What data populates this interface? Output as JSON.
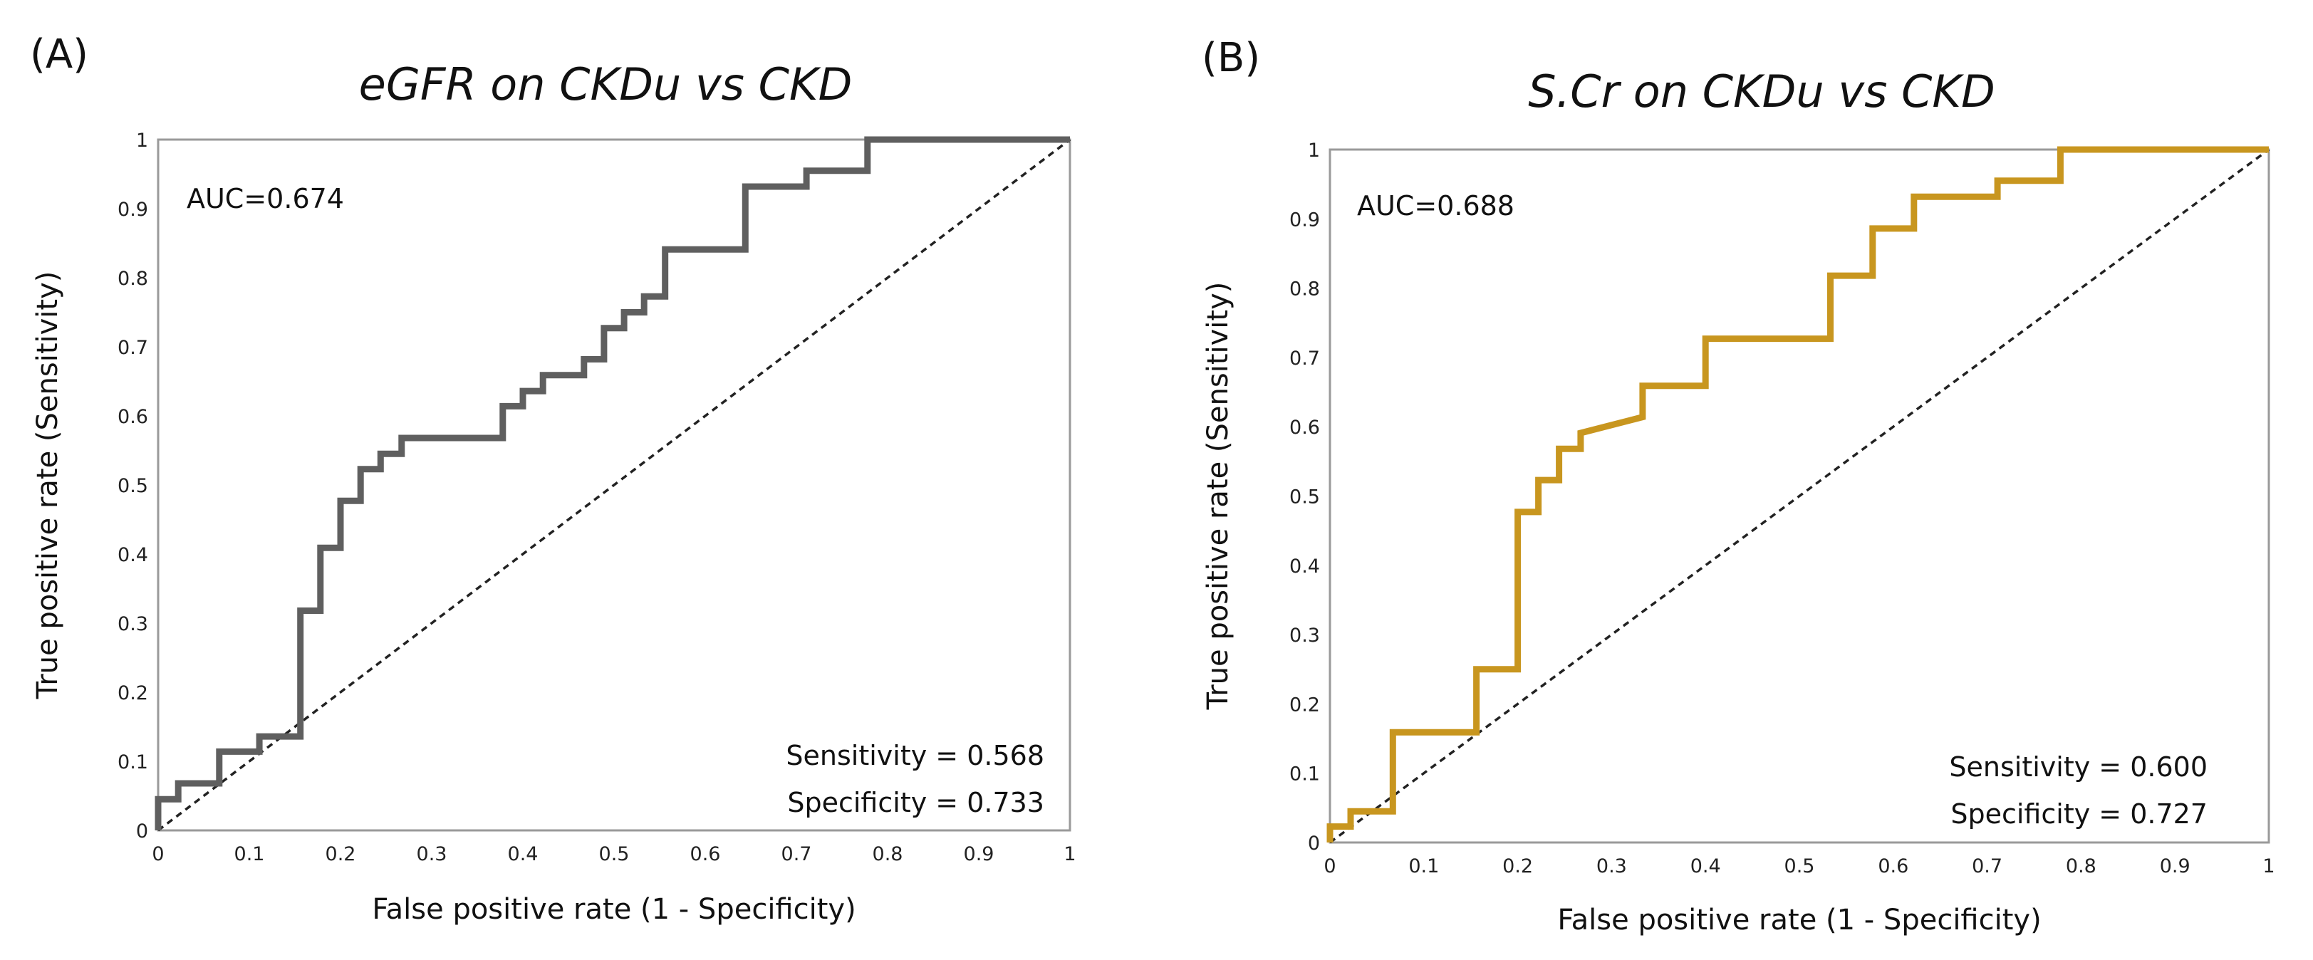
{
  "chart_data": [
    {
      "type": "line",
      "panel_label": "(A)",
      "title": "eGFR on CKDu vs CKD",
      "xlabel": "False positive rate (1 - Specificity)",
      "ylabel": "True positive rate (Sensitivity)",
      "xlim": [
        0,
        1
      ],
      "ylim": [
        0,
        1
      ],
      "x_ticks": [
        "0",
        "0.1",
        "0.2",
        "0.3",
        "0.4",
        "0.5",
        "0.6",
        "0.7",
        "0.8",
        "0.9",
        "1"
      ],
      "y_ticks": [
        "0",
        "0.1",
        "0.2",
        "0.3",
        "0.4",
        "0.5",
        "0.6",
        "0.7",
        "0.8",
        "0.9",
        "1"
      ],
      "auc_label": "AUC=0.674",
      "sensitivity_label": "Sensitivity = 0.568",
      "specificity_label": "Specificity = 0.733",
      "roc_color": "#5f5f5f",
      "reference_color": "#222222",
      "series": [
        {
          "name": "ROC",
          "x": [
            0,
            0,
            0.022,
            0.022,
            0.067,
            0.067,
            0.111,
            0.111,
            0.156,
            0.156,
            0.178,
            0.178,
            0.2,
            0.2,
            0.222,
            0.222,
            0.244,
            0.244,
            0.267,
            0.267,
            0.378,
            0.378,
            0.4,
            0.4,
            0.422,
            0.422,
            0.467,
            0.467,
            0.489,
            0.489,
            0.511,
            0.511,
            0.533,
            0.533,
            0.556,
            0.556,
            0.644,
            0.644,
            0.711,
            0.711,
            0.778,
            0.778,
            1
          ],
          "y": [
            0,
            0.045,
            0.045,
            0.068,
            0.068,
            0.114,
            0.114,
            0.136,
            0.136,
            0.318,
            0.318,
            0.409,
            0.409,
            0.477,
            0.477,
            0.523,
            0.523,
            0.545,
            0.545,
            0.568,
            0.568,
            0.614,
            0.614,
            0.636,
            0.636,
            0.659,
            0.659,
            0.682,
            0.682,
            0.727,
            0.727,
            0.75,
            0.75,
            0.773,
            0.773,
            0.841,
            0.841,
            0.932,
            0.932,
            0.955,
            0.955,
            1,
            1
          ]
        },
        {
          "name": "Reference",
          "x": [
            0,
            1
          ],
          "y": [
            0,
            1
          ]
        }
      ]
    },
    {
      "type": "line",
      "panel_label": "(B)",
      "title": "S.Cr on CKDu vs CKD",
      "xlabel": "False positive rate (1 - Specificity)",
      "ylabel": "True positive rate (Sensitivity)",
      "xlim": [
        0,
        1
      ],
      "ylim": [
        0,
        1
      ],
      "x_ticks": [
        "0",
        "0.1",
        "0.2",
        "0.3",
        "0.4",
        "0.5",
        "0.6",
        "0.7",
        "0.8",
        "0.9",
        "1"
      ],
      "y_ticks": [
        "0",
        "0.1",
        "0.2",
        "0.3",
        "0.4",
        "0.5",
        "0.6",
        "0.7",
        "0.8",
        "0.9",
        "1"
      ],
      "auc_label": "AUC=0.688",
      "sensitivity_label": "Sensitivity = 0.600",
      "specificity_label": "Specificity = 0.727",
      "roc_color": "#c8961f",
      "reference_color": "#222222",
      "series": [
        {
          "name": "ROC",
          "x": [
            0,
            0,
            0.022,
            0.022,
            0.067,
            0.067,
            0.156,
            0.156,
            0.2,
            0.2,
            0.222,
            0.222,
            0.244,
            0.244,
            0.267,
            0.267,
            0.333,
            0.333,
            0.4,
            0.4,
            0.533,
            0.533,
            0.578,
            0.578,
            0.622,
            0.622,
            0.711,
            0.711,
            0.778,
            0.778,
            1
          ],
          "y": [
            0,
            0.023,
            0.023,
            0.045,
            0.045,
            0.159,
            0.159,
            0.25,
            0.25,
            0.477,
            0.477,
            0.523,
            0.523,
            0.568,
            0.568,
            0.591,
            0.614,
            0.659,
            0.659,
            0.727,
            0.727,
            0.818,
            0.818,
            0.886,
            0.886,
            0.932,
            0.932,
            0.955,
            0.955,
            1,
            1
          ]
        },
        {
          "name": "Reference",
          "x": [
            0,
            1
          ],
          "y": [
            0,
            1
          ]
        }
      ]
    }
  ]
}
